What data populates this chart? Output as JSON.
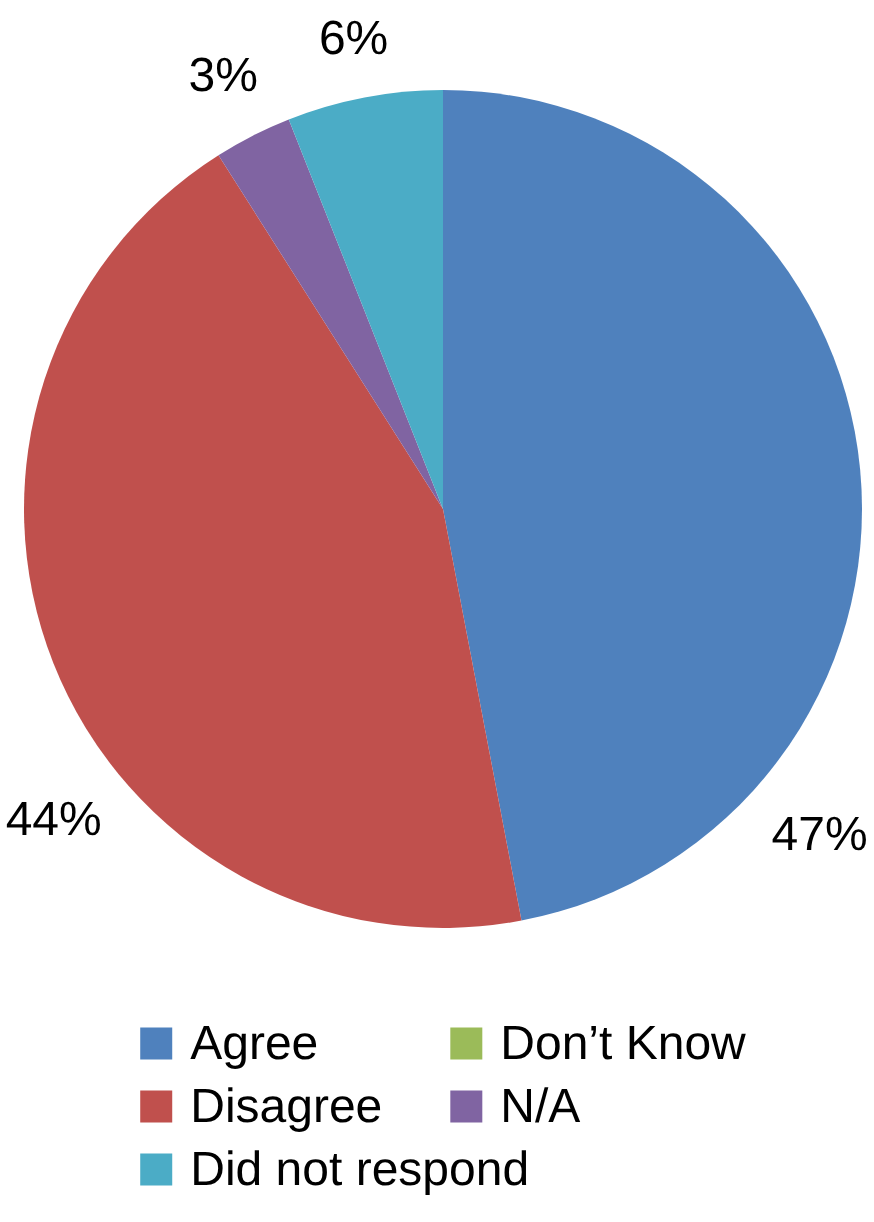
{
  "chart_data": {
    "type": "pie",
    "categories": [
      "Agree",
      "Disagree",
      "Don’t Know",
      "N/A",
      "Did not respond"
    ],
    "values": [
      47,
      44,
      0,
      3,
      6
    ],
    "colors": [
      "#4f81bd",
      "#c0504d",
      "#9bbb59",
      "#8064a2",
      "#4bacc6"
    ],
    "value_labels": [
      "47%",
      "44%",
      null,
      "3%",
      "6%"
    ],
    "legend": "bottom"
  }
}
